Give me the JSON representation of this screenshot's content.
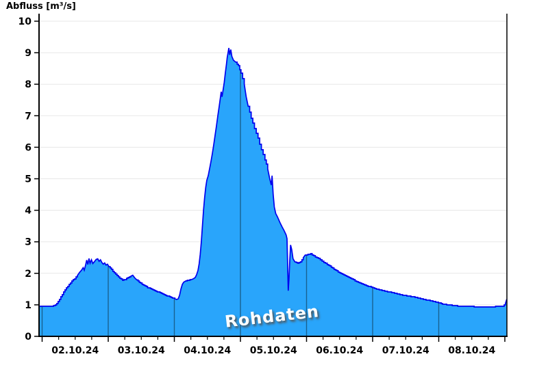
{
  "title": "Abfluss [m³/s]",
  "watermark": "Rohdaten",
  "colors": {
    "background": "#ffffff",
    "axis": "#000000",
    "grid_horizontal": "#e7e7e7",
    "day_gridline": "#19618f",
    "area_fill": "#29a5fb",
    "series_line": "#0000ee",
    "tick_label": "#000000",
    "watermark_text": "#ffffff",
    "watermark_shadow": "#505050"
  },
  "chart_data": {
    "type": "area",
    "title": "Abfluss [m³/s]",
    "ylabel": "Abfluss [m³/s]",
    "xlabel": "",
    "ylim": [
      0,
      10
    ],
    "yticks": [
      0,
      1,
      2,
      3,
      4,
      5,
      6,
      7,
      8,
      9,
      10
    ],
    "x_axis": {
      "day_labels": [
        "02.10.24",
        "03.10.24",
        "04.10.24",
        "05.10.24",
        "06.10.24",
        "07.10.24",
        "08.10.24"
      ],
      "hours_domain_since_02_10_00h": [
        -1.1,
        168.7
      ],
      "major_tick_every_hours": 24,
      "minor_tick_every_hours": 6
    },
    "grid": {
      "horizontal_lines": true,
      "vertical_day_lines_inside_fill": true
    },
    "legend_position": "none",
    "annotations": [
      {
        "text": "Rohdaten",
        "style": "white rotated watermark with gray shadow"
      }
    ],
    "series": [
      {
        "name": "Abfluss Rohdaten",
        "unit": "m³/s",
        "points_hours_value": [
          [
            -1.1,
            0.95
          ],
          [
            1.5,
            0.95
          ],
          [
            3.5,
            0.96
          ],
          [
            4.8,
            1.0
          ],
          [
            5.8,
            1.1
          ],
          [
            6.8,
            1.25
          ],
          [
            7.8,
            1.4
          ],
          [
            8.8,
            1.53
          ],
          [
            9.8,
            1.65
          ],
          [
            10.8,
            1.75
          ],
          [
            11.8,
            1.83
          ],
          [
            12.8,
            1.94
          ],
          [
            13.6,
            2.03
          ],
          [
            14.3,
            2.1
          ],
          [
            14.9,
            2.18
          ],
          [
            15.3,
            2.1
          ],
          [
            15.8,
            2.27
          ],
          [
            16.2,
            2.42
          ],
          [
            16.6,
            2.28
          ],
          [
            17.0,
            2.47
          ],
          [
            17.4,
            2.32
          ],
          [
            17.9,
            2.43
          ],
          [
            18.4,
            2.31
          ],
          [
            19.0,
            2.37
          ],
          [
            19.6,
            2.44
          ],
          [
            20.2,
            2.46
          ],
          [
            20.7,
            2.38
          ],
          [
            21.2,
            2.43
          ],
          [
            21.7,
            2.34
          ],
          [
            22.2,
            2.29
          ],
          [
            22.7,
            2.33
          ],
          [
            23.2,
            2.26
          ],
          [
            23.7,
            2.29
          ],
          [
            24.3,
            2.21
          ],
          [
            25.2,
            2.12
          ],
          [
            26.2,
            2.02
          ],
          [
            27.2,
            1.92
          ],
          [
            28.2,
            1.85
          ],
          [
            29.2,
            1.78
          ],
          [
            30.2,
            1.81
          ],
          [
            31.2,
            1.86
          ],
          [
            32.2,
            1.9
          ],
          [
            32.9,
            1.94
          ],
          [
            33.6,
            1.86
          ],
          [
            34.4,
            1.79
          ],
          [
            35.3,
            1.72
          ],
          [
            36.3,
            1.65
          ],
          [
            37.3,
            1.6
          ],
          [
            38.3,
            1.55
          ],
          [
            39.3,
            1.51
          ],
          [
            40.3,
            1.47
          ],
          [
            41.3,
            1.44
          ],
          [
            42.3,
            1.4
          ],
          [
            43.3,
            1.37
          ],
          [
            44.3,
            1.33
          ],
          [
            45.3,
            1.29
          ],
          [
            46.3,
            1.25
          ],
          [
            47.3,
            1.22
          ],
          [
            48.2,
            1.19
          ],
          [
            48.8,
            1.17
          ],
          [
            49.4,
            1.19
          ],
          [
            49.9,
            1.3
          ],
          [
            50.4,
            1.5
          ],
          [
            50.9,
            1.65
          ],
          [
            51.4,
            1.72
          ],
          [
            52.2,
            1.76
          ],
          [
            53.2,
            1.78
          ],
          [
            54.2,
            1.8
          ],
          [
            55.0,
            1.83
          ],
          [
            55.6,
            1.87
          ],
          [
            56.1,
            1.96
          ],
          [
            56.6,
            2.1
          ],
          [
            57.0,
            2.3
          ],
          [
            57.4,
            2.6
          ],
          [
            57.8,
            3.0
          ],
          [
            58.2,
            3.5
          ],
          [
            58.6,
            4.0
          ],
          [
            59.0,
            4.4
          ],
          [
            59.4,
            4.72
          ],
          [
            59.8,
            4.95
          ],
          [
            60.3,
            5.1
          ],
          [
            60.8,
            5.32
          ],
          [
            61.3,
            5.55
          ],
          [
            61.8,
            5.8
          ],
          [
            62.3,
            6.08
          ],
          [
            62.8,
            6.38
          ],
          [
            63.3,
            6.68
          ],
          [
            63.8,
            7.0
          ],
          [
            64.3,
            7.3
          ],
          [
            64.7,
            7.55
          ],
          [
            65.0,
            7.76
          ],
          [
            65.3,
            7.6
          ],
          [
            65.7,
            7.82
          ],
          [
            66.1,
            8.05
          ],
          [
            66.5,
            8.35
          ],
          [
            66.9,
            8.62
          ],
          [
            67.2,
            8.85
          ],
          [
            67.5,
            9.0
          ],
          [
            67.8,
            9.15
          ],
          [
            68.1,
            8.93
          ],
          [
            68.5,
            9.1
          ],
          [
            68.9,
            8.88
          ],
          [
            69.5,
            8.76
          ],
          [
            70.3,
            8.7
          ],
          [
            71.3,
            8.58
          ],
          [
            72.2,
            8.35
          ],
          [
            73.4,
            8.0
          ],
          [
            74.1,
            7.6
          ],
          [
            74.8,
            7.3
          ],
          [
            75.9,
            6.92
          ],
          [
            77.1,
            6.6
          ],
          [
            78.4,
            6.28
          ],
          [
            79.6,
            5.92
          ],
          [
            80.9,
            5.6
          ],
          [
            81.9,
            5.32
          ],
          [
            82.6,
            5.02
          ],
          [
            83.2,
            4.8
          ],
          [
            83.5,
            5.1
          ],
          [
            83.9,
            4.5
          ],
          [
            84.3,
            4.1
          ],
          [
            84.8,
            3.9
          ],
          [
            85.5,
            3.78
          ],
          [
            86.3,
            3.62
          ],
          [
            87.1,
            3.48
          ],
          [
            87.9,
            3.35
          ],
          [
            88.6,
            3.22
          ],
          [
            88.9,
            3.1
          ],
          [
            89.15,
            2.2
          ],
          [
            89.35,
            1.45
          ],
          [
            89.6,
            1.8
          ],
          [
            89.9,
            2.4
          ],
          [
            90.2,
            2.9
          ],
          [
            90.6,
            2.76
          ],
          [
            91.1,
            2.46
          ],
          [
            91.8,
            2.36
          ],
          [
            92.8,
            2.33
          ],
          [
            93.8,
            2.36
          ],
          [
            94.8,
            2.5
          ],
          [
            95.5,
            2.58
          ],
          [
            96.5,
            2.6
          ],
          [
            97.5,
            2.62
          ],
          [
            98.6,
            2.55
          ],
          [
            99.8,
            2.5
          ],
          [
            101,
            2.43
          ],
          [
            102.3,
            2.35
          ],
          [
            103.5,
            2.28
          ],
          [
            105,
            2.2
          ],
          [
            106.5,
            2.1
          ],
          [
            108,
            2.02
          ],
          [
            109.5,
            1.95
          ],
          [
            111,
            1.88
          ],
          [
            112.5,
            1.82
          ],
          [
            114.2,
            1.74
          ],
          [
            116,
            1.67
          ],
          [
            117.8,
            1.61
          ],
          [
            119.5,
            1.56
          ],
          [
            121.4,
            1.5
          ],
          [
            123.4,
            1.46
          ],
          [
            125.4,
            1.42
          ],
          [
            127.4,
            1.38
          ],
          [
            129.4,
            1.34
          ],
          [
            131.4,
            1.3
          ],
          [
            133.4,
            1.27
          ],
          [
            135.4,
            1.24
          ],
          [
            137.4,
            1.2
          ],
          [
            139.4,
            1.16
          ],
          [
            141.4,
            1.12
          ],
          [
            143.4,
            1.08
          ],
          [
            145.4,
            1.03
          ],
          [
            147.4,
            1.0
          ],
          [
            149.4,
            0.98
          ],
          [
            151.4,
            0.96
          ],
          [
            154,
            0.95
          ],
          [
            158,
            0.94
          ],
          [
            163,
            0.94
          ],
          [
            167.3,
            0.95
          ],
          [
            168.2,
            1.05
          ],
          [
            168.7,
            1.18
          ]
        ]
      }
    ]
  }
}
